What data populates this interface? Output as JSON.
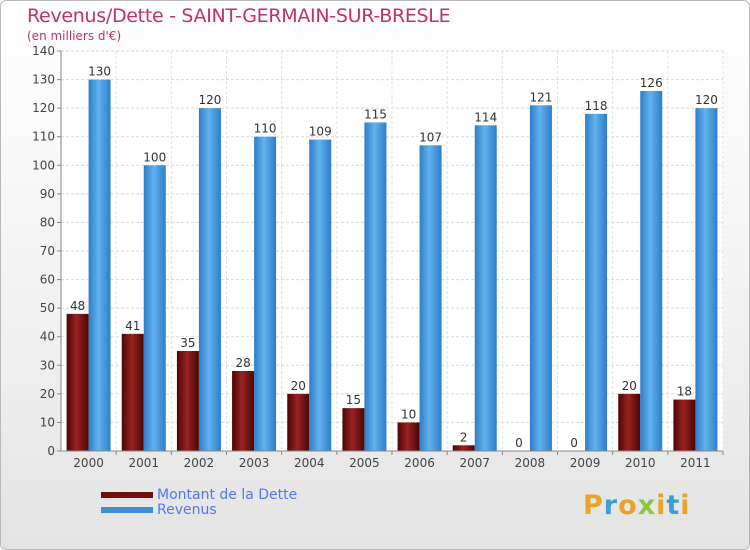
{
  "title": "Revenus/Dette - SAINT-GERMAIN-SUR-BRESLE",
  "subtitle": "(en milliers d'€)",
  "colors": {
    "title": "#c0306a",
    "dette": "#7a1515",
    "revenus": "#3d8fd9",
    "legend_text": "#5577ee"
  },
  "legend": {
    "dette": "Montant de la Dette",
    "revenus": "Revenus"
  },
  "logo": {
    "text": "Proxiti",
    "letters": [
      "P",
      "r",
      "o",
      "x",
      "i",
      "t",
      "i"
    ],
    "colors": [
      "#e8a32a",
      "#3f9dd6",
      "#e8a32a",
      "#8fc640",
      "#e8a32a",
      "#3f9dd6",
      "#e8a32a"
    ]
  },
  "chart_data": {
    "type": "bar",
    "categories": [
      "2000",
      "2001",
      "2002",
      "2003",
      "2004",
      "2005",
      "2006",
      "2007",
      "2008",
      "2009",
      "2010",
      "2011"
    ],
    "series": [
      {
        "name": "Montant de la Dette",
        "values": [
          48,
          41,
          35,
          28,
          20,
          15,
          10,
          2,
          0,
          0,
          20,
          18
        ]
      },
      {
        "name": "Revenus",
        "values": [
          130,
          100,
          120,
          110,
          109,
          115,
          107,
          114,
          121,
          118,
          126,
          120
        ]
      }
    ],
    "yticks": [
      0,
      10,
      20,
      30,
      40,
      50,
      60,
      70,
      80,
      90,
      100,
      110,
      120,
      130,
      140
    ],
    "ylim": [
      0,
      140
    ],
    "grid": true,
    "legend_position": "bottom-left"
  }
}
